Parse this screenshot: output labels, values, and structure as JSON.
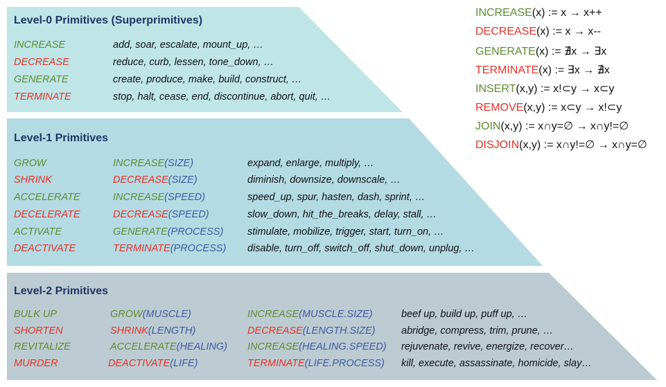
{
  "level0": {
    "title": "Level-0 Primitives (Superprimitives)",
    "rows": [
      {
        "name": "INCREASE",
        "color": "green",
        "examples": "add, soar, escalate, mount_up, …"
      },
      {
        "name": "DECREASE",
        "color": "red",
        "examples": "reduce, curb, lessen, tone_down, …"
      },
      {
        "name": "GENERATE",
        "color": "green",
        "examples": "create, produce, make, build, construct, …"
      },
      {
        "name": "TERMINATE",
        "color": "red",
        "examples": "stop, halt, cease, end, discontinue, abort, quit, …"
      }
    ]
  },
  "level1": {
    "title": "Level-1 Primitives",
    "rows": [
      {
        "name": "GROW",
        "color": "green",
        "base": "INCREASE",
        "arg": "(SIZE)",
        "examples": "expand, enlarge, multiply, …"
      },
      {
        "name": "SHRINK",
        "color": "red",
        "base": "DECREASE",
        "arg": "(SIZE)",
        "examples": "diminish, downsize, downscale, …"
      },
      {
        "name": "ACCELERATE",
        "color": "green",
        "base": "INCREASE",
        "arg": "(SPEED)",
        "examples": "speed_up, spur, hasten, dash, sprint, …"
      },
      {
        "name": "DECELERATE",
        "color": "red",
        "base": "DECREASE",
        "arg": "(SPEED)",
        "examples": "slow_down, hit_the_breaks, delay, stall, …"
      },
      {
        "name": "ACTIVATE",
        "color": "green",
        "base": "GENERATE",
        "arg": "(PROCESS)",
        "examples": "stimulate, mobilize, trigger, start, turn_on, …"
      },
      {
        "name": "DEACTIVATE",
        "color": "red",
        "base": "TERMINATE",
        "arg": "(PROCESS)",
        "examples": "disable, turn_off, switch_off, shut_down, unplug, …"
      }
    ]
  },
  "level2": {
    "title": "Level-2 Primitives",
    "rows": [
      {
        "name": "BULK UP",
        "color": "green",
        "mid": "GROW",
        "mid_arg": "(MUSCLE)",
        "base": "INCREASE",
        "base_arg": "(MUSCLE.SIZE)",
        "examples": "beef up, build up, puff up, …"
      },
      {
        "name": "SHORTEN",
        "color": "red",
        "mid": "SHRINK",
        "mid_arg": "(LENGTH)",
        "base": "DECREASE",
        "base_arg": "(LENGTH.SIZE)",
        "examples": "abridge, compress, trim, prune, …"
      },
      {
        "name": "REVITALIZE",
        "color": "green",
        "mid": "ACCELERATE",
        "mid_arg": "(HEALING)",
        "base": "INCREASE",
        "base_arg": "(HEALING.SPEED)",
        "examples": "rejuvenate, revive, energize, recover…"
      },
      {
        "name": "MURDER",
        "color": "red",
        "mid": "DEACTIVATE",
        "mid_arg": "(LIFE)",
        "base": "TERMINATE",
        "base_arg": "(LIFE.PROCESS)",
        "examples": "kill, execute, assassinate, homicide, slay…"
      }
    ]
  },
  "definitions": [
    {
      "name": "INCREASE",
      "color": "green",
      "args": "(x)",
      "rule": " := x → x++"
    },
    {
      "name": "DECREASE",
      "color": "red",
      "args": "(x)",
      "rule": " := x → x--"
    },
    {
      "name": "GENERATE",
      "color": "green",
      "args": "(x)",
      "rule": " := ∄x → ∃x"
    },
    {
      "name": "TERMINATE",
      "color": "red",
      "args": "(x)",
      "rule": " := ∃x → ∄x"
    },
    {
      "name": "INSERT",
      "color": "green",
      "args": "(x,y)",
      "rule": " := x!⊂y → x⊂y"
    },
    {
      "name": "REMOVE",
      "color": "red",
      "args": "(x,y)",
      "rule": " := x⊂y → x!⊂y"
    },
    {
      "name": "JOIN",
      "color": "green",
      "args": "(x,y)",
      "rule": " := x∩y=∅ → x∩y!=∅"
    },
    {
      "name": "DISJOIN",
      "color": "red",
      "args": "(x,y)",
      "rule": " := x∩y!=∅ → x∩y=∅"
    }
  ],
  "colors": {
    "green": "#5c8c32",
    "red": "#e53228",
    "blue": "#3a5ba0",
    "title": "#1f3564",
    "band0": "#bfe5e7",
    "band1": "#b4dae3",
    "band2": "#bccbd2"
  }
}
